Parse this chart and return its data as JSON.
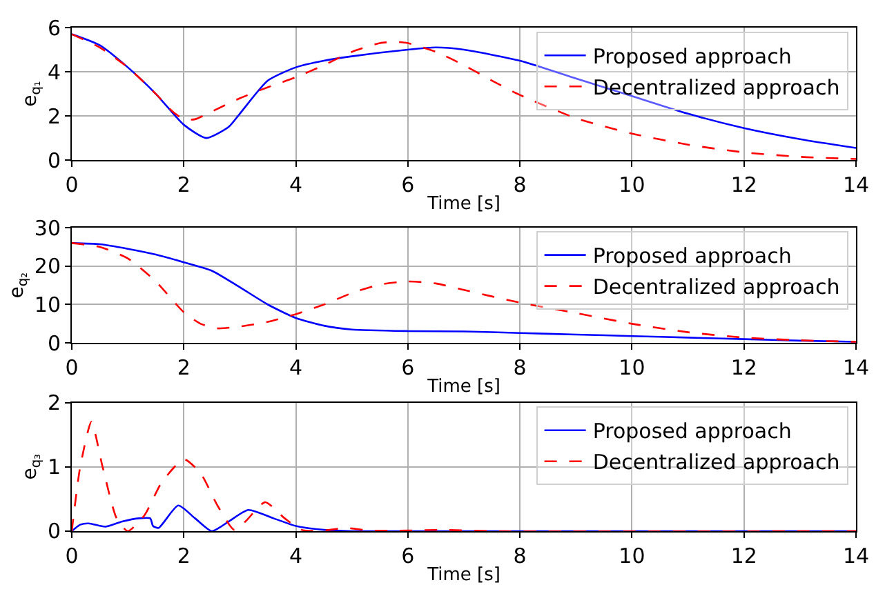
{
  "chart_data": [
    {
      "type": "line",
      "xlabel": "Time [s]",
      "ylabel": "e$_{q₁}$",
      "xlim": [
        0,
        14
      ],
      "xticks": [
        0,
        2,
        4,
        6,
        8,
        10,
        12,
        14
      ],
      "ylim": [
        0,
        6
      ],
      "yticks": [
        0,
        2,
        4,
        6
      ],
      "grid": true,
      "legend": "top right",
      "series": [
        {
          "name": "Proposed approach",
          "color": "#0000ff",
          "line_style": "solid",
          "x": [
            0,
            0.5,
            1,
            1.5,
            2,
            2.4,
            2.8,
            3,
            3.5,
            4,
            4.5,
            5,
            6,
            6.5,
            7,
            8,
            9,
            10,
            11,
            12,
            13,
            14
          ],
          "values": [
            5.7,
            5.2,
            4.2,
            3.0,
            1.6,
            1.0,
            1.5,
            2.1,
            3.6,
            4.2,
            4.5,
            4.7,
            5.0,
            5.1,
            5.0,
            4.5,
            3.7,
            2.9,
            2.1,
            1.45,
            0.95,
            0.55
          ]
        },
        {
          "name": "Decentralized approach",
          "color": "#ff0000",
          "line_style": "dashed",
          "x": [
            0,
            0.5,
            1,
            1.5,
            1.8,
            2,
            2.2,
            2.5,
            3,
            3.5,
            4,
            4.5,
            5,
            5.5,
            5.8,
            6,
            6.5,
            7,
            7.5,
            8,
            9,
            10,
            11,
            12,
            13,
            14
          ],
          "values": [
            5.7,
            5.1,
            4.2,
            3.0,
            2.2,
            1.85,
            1.85,
            2.2,
            2.8,
            3.3,
            3.75,
            4.3,
            4.9,
            5.3,
            5.35,
            5.3,
            4.9,
            4.3,
            3.6,
            2.95,
            1.9,
            1.2,
            0.7,
            0.35,
            0.15,
            0.05
          ]
        }
      ]
    },
    {
      "type": "line",
      "xlabel": "Time [s]",
      "ylabel": "e$_{q₂}$",
      "xlim": [
        0,
        14
      ],
      "xticks": [
        0,
        2,
        4,
        6,
        8,
        10,
        12,
        14
      ],
      "ylim": [
        0,
        30
      ],
      "yticks": [
        0,
        10,
        20,
        30
      ],
      "grid": true,
      "legend": "top right",
      "series": [
        {
          "name": "Proposed approach",
          "color": "#0000ff",
          "line_style": "solid",
          "x": [
            0,
            0.5,
            1,
            1.5,
            2,
            2.5,
            3,
            3.5,
            4,
            4.5,
            5,
            6,
            7,
            8,
            9,
            10,
            11,
            12,
            13,
            14
          ],
          "values": [
            26,
            25.7,
            24.5,
            23,
            21,
            18.8,
            14.5,
            10,
            6.5,
            4.5,
            3.5,
            3.1,
            3.0,
            2.6,
            2.2,
            1.8,
            1.4,
            1.0,
            0.6,
            0.3
          ]
        },
        {
          "name": "Decentralized approach",
          "color": "#ff0000",
          "line_style": "dashed",
          "x": [
            0,
            0.5,
            1,
            1.5,
            2,
            2.3,
            2.6,
            3,
            3.5,
            4,
            4.5,
            5,
            5.5,
            6,
            6.5,
            7,
            8,
            9,
            10,
            11,
            12,
            13,
            14
          ],
          "values": [
            26,
            25,
            22,
            16,
            8,
            5,
            3.8,
            4.3,
            5.5,
            7.5,
            10,
            13,
            15.2,
            16,
            15.5,
            13.8,
            10.5,
            7.8,
            5,
            2.8,
            1.4,
            0.7,
            0.3
          ]
        }
      ]
    },
    {
      "type": "line",
      "xlabel": "Time [s]",
      "ylabel": "e$_{q₃}$",
      "xlim": [
        0,
        14
      ],
      "xticks": [
        0,
        2,
        4,
        6,
        8,
        10,
        12,
        14
      ],
      "ylim": [
        0,
        2
      ],
      "yticks": [
        0,
        1,
        2
      ],
      "grid": true,
      "legend": "top right",
      "series": [
        {
          "name": "Proposed approach",
          "color": "#0000ff",
          "line_style": "solid",
          "x": [
            0,
            0.15,
            0.3,
            0.6,
            0.9,
            1.2,
            1.4,
            1.45,
            1.55,
            1.9,
            2.2,
            2.5,
            2.8,
            3.15,
            3.6,
            4,
            4.5,
            5,
            14
          ],
          "values": [
            0,
            0.1,
            0.12,
            0.07,
            0.15,
            0.2,
            0.2,
            0.08,
            0.05,
            0.4,
            0.2,
            0,
            0.15,
            0.33,
            0.2,
            0.08,
            0.02,
            0,
            0
          ]
        },
        {
          "name": "Decentralized approach",
          "color": "#ff0000",
          "line_style": "dashed",
          "x": [
            0,
            0.15,
            0.35,
            0.55,
            0.8,
            1,
            1.3,
            1.6,
            2,
            2.3,
            2.6,
            2.9,
            3.1,
            3.45,
            3.8,
            4.1,
            4.5,
            4.9,
            5.3,
            6,
            6.6,
            7.5,
            14
          ],
          "values": [
            0,
            1.0,
            1.7,
            1.0,
            0.2,
            0,
            0.25,
            0.75,
            1.12,
            0.9,
            0.4,
            0.02,
            0.15,
            0.45,
            0.2,
            0.02,
            0.01,
            0.05,
            0.01,
            0.01,
            0.02,
            0,
            0
          ]
        }
      ]
    }
  ]
}
